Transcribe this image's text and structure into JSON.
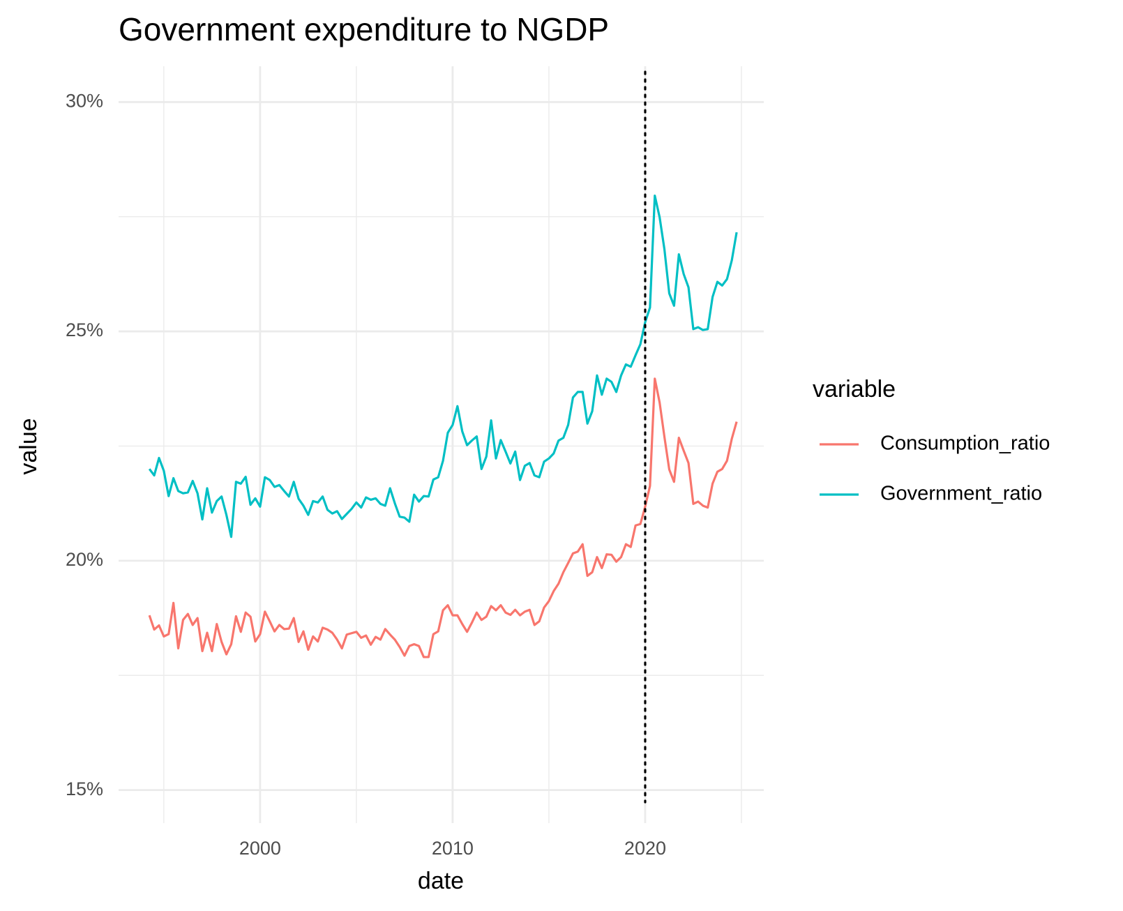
{
  "chart_data": {
    "type": "line",
    "title": "Government expenditure to NGDP",
    "x_label": "date",
    "y_label": "value",
    "legend_title": "variable",
    "legend": "right",
    "grid": true,
    "xlim": [
      1992.65,
      2026.16
    ],
    "xticks": [
      2000,
      2010,
      2020
    ],
    "minor_xticks": [
      1995,
      2005,
      2015,
      2025
    ],
    "ylim": [
      14.28,
      30.78
    ],
    "yticks": [
      {
        "value": 15,
        "label": "15%"
      },
      {
        "value": 20,
        "label": "20%"
      },
      {
        "value": 25,
        "label": "25%"
      },
      {
        "value": 30,
        "label": "30%"
      }
    ],
    "minor_yticks": [
      17.5,
      22.5,
      27.5
    ],
    "vline": 2020,
    "x": [
      1994.25,
      1994.5,
      1994.75,
      1995,
      1995.25,
      1995.5,
      1995.75,
      1996,
      1996.25,
      1996.5,
      1996.75,
      1997,
      1997.25,
      1997.5,
      1997.75,
      1998,
      1998.25,
      1998.5,
      1998.75,
      1999,
      1999.25,
      1999.5,
      1999.75,
      2000,
      2000.25,
      2000.5,
      2000.75,
      2001,
      2001.25,
      2001.5,
      2001.75,
      2002,
      2002.25,
      2002.5,
      2002.75,
      2003,
      2003.25,
      2003.5,
      2003.75,
      2004,
      2004.25,
      2004.5,
      2004.75,
      2005,
      2005.25,
      2005.5,
      2005.75,
      2006,
      2006.25,
      2006.5,
      2006.75,
      2007,
      2007.25,
      2007.5,
      2007.75,
      2008,
      2008.25,
      2008.5,
      2008.75,
      2009,
      2009.25,
      2009.5,
      2009.75,
      2010,
      2010.25,
      2010.5,
      2010.75,
      2011,
      2011.25,
      2011.5,
      2011.75,
      2012,
      2012.25,
      2012.5,
      2012.75,
      2013,
      2013.25,
      2013.5,
      2013.75,
      2014,
      2014.25,
      2014.5,
      2014.75,
      2015,
      2015.25,
      2015.5,
      2015.75,
      2016,
      2016.25,
      2016.5,
      2016.75,
      2017,
      2017.25,
      2017.5,
      2017.75,
      2018,
      2018.25,
      2018.5,
      2018.75,
      2019,
      2019.25,
      2019.5,
      2019.75,
      2020,
      2020.25,
      2020.5,
      2020.75,
      2021,
      2021.25,
      2021.5,
      2021.75,
      2022,
      2022.25,
      2022.5,
      2022.75,
      2023,
      2023.25,
      2023.5,
      2023.75,
      2024,
      2024.25,
      2024.5,
      2024.75
    ],
    "series": [
      {
        "name": "Consumption_ratio",
        "color": "#F8766D",
        "values": [
          18.81,
          18.5,
          18.59,
          18.35,
          18.4,
          19.08,
          18.09,
          18.71,
          18.84,
          18.6,
          18.75,
          18.03,
          18.43,
          18.03,
          18.62,
          18.23,
          17.96,
          18.18,
          18.79,
          18.45,
          18.87,
          18.78,
          18.24,
          18.4,
          18.89,
          18.68,
          18.46,
          18.6,
          18.51,
          18.52,
          18.75,
          18.23,
          18.46,
          18.06,
          18.35,
          18.24,
          18.54,
          18.5,
          18.43,
          18.28,
          18.09,
          18.39,
          18.42,
          18.45,
          18.32,
          18.37,
          18.17,
          18.34,
          18.28,
          18.51,
          18.39,
          18.28,
          18.12,
          17.93,
          18.14,
          18.18,
          18.14,
          17.9,
          17.9,
          18.4,
          18.46,
          18.92,
          19.03,
          18.81,
          18.81,
          18.62,
          18.45,
          18.65,
          18.87,
          18.71,
          18.78,
          19.01,
          18.92,
          19.03,
          18.87,
          18.82,
          18.93,
          18.81,
          18.89,
          18.93,
          18.6,
          18.68,
          18.98,
          19.12,
          19.34,
          19.5,
          19.75,
          19.95,
          20.16,
          20.2,
          20.36,
          19.67,
          19.75,
          20.08,
          19.84,
          20.14,
          20.13,
          19.98,
          20.08,
          20.36,
          20.3,
          20.77,
          20.8,
          21.18,
          21.63,
          23.97,
          23.45,
          22.7,
          21.99,
          21.72,
          22.68,
          22.4,
          22.13,
          21.24,
          21.29,
          21.2,
          21.16,
          21.68,
          21.94,
          22.0,
          22.18,
          22.66,
          23.03
        ]
      },
      {
        "name": "Government_ratio",
        "color": "#00BFC4",
        "values": [
          22.0,
          21.86,
          22.24,
          21.96,
          21.41,
          21.8,
          21.52,
          21.47,
          21.49,
          21.74,
          21.47,
          20.9,
          21.58,
          21.05,
          21.3,
          21.4,
          21.0,
          20.52,
          21.72,
          21.68,
          21.83,
          21.22,
          21.36,
          21.18,
          21.82,
          21.76,
          21.61,
          21.65,
          21.52,
          21.4,
          21.72,
          21.35,
          21.2,
          21.0,
          21.3,
          21.27,
          21.4,
          21.11,
          21.03,
          21.08,
          20.91,
          21.02,
          21.13,
          21.27,
          21.16,
          21.38,
          21.33,
          21.36,
          21.24,
          21.2,
          21.58,
          21.25,
          20.96,
          20.94,
          20.85,
          21.44,
          21.29,
          21.41,
          21.4,
          21.77,
          21.82,
          22.18,
          22.79,
          22.96,
          23.37,
          22.82,
          22.52,
          22.62,
          22.71,
          22.0,
          22.27,
          23.06,
          22.23,
          22.63,
          22.38,
          22.12,
          22.38,
          21.76,
          22.07,
          22.13,
          21.86,
          21.82,
          22.16,
          22.23,
          22.34,
          22.62,
          22.68,
          22.96,
          23.56,
          23.68,
          23.68,
          22.99,
          23.26,
          24.04,
          23.62,
          23.97,
          23.9,
          23.68,
          24.04,
          24.28,
          24.23,
          24.48,
          24.72,
          25.2,
          25.52,
          27.96,
          27.49,
          26.79,
          25.83,
          25.56,
          26.68,
          26.25,
          25.96,
          25.05,
          25.09,
          25.03,
          25.05,
          25.75,
          26.08,
          26.0,
          26.14,
          26.55,
          27.16
        ]
      }
    ]
  }
}
